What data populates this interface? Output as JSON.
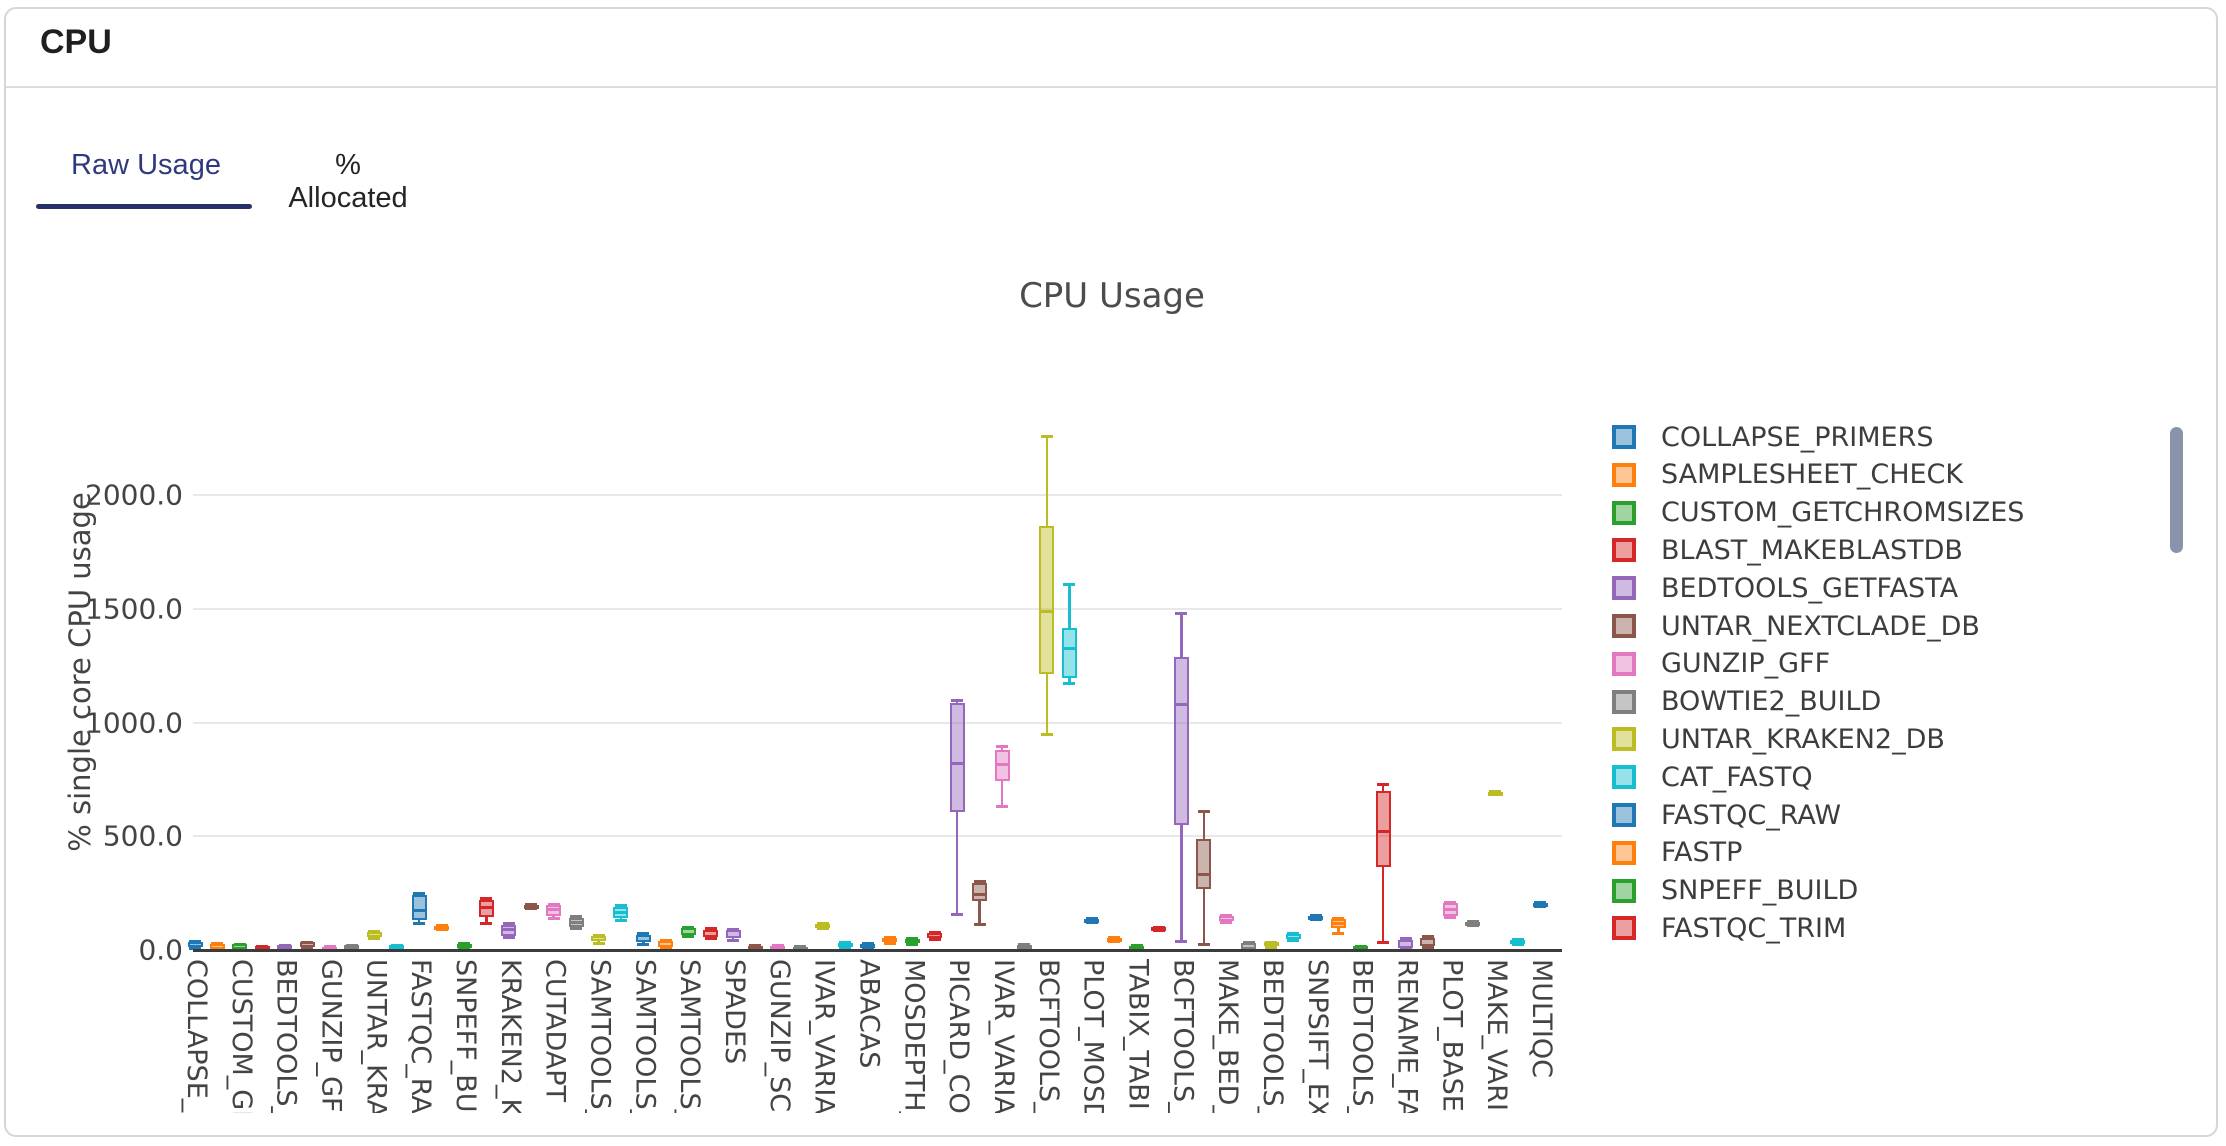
{
  "card": {
    "title": "CPU"
  },
  "tabs": [
    {
      "label": "Raw Usage",
      "active": true
    },
    {
      "label": "% Allocated",
      "active": false
    }
  ],
  "chart_data": {
    "type": "box",
    "title": "CPU Usage",
    "xlabel": "",
    "ylabel": "% single core CPU usage",
    "ylim": [
      0,
      2320
    ],
    "grid": true,
    "legend_position": "right",
    "yticks": [
      {
        "label": "0.0",
        "value": 0
      },
      {
        "label": "500.0",
        "value": 500
      },
      {
        "label": "1000.0",
        "value": 1000
      },
      {
        "label": "1500.0",
        "value": 1500
      },
      {
        "label": "2000.0",
        "value": 2000
      }
    ],
    "palette": [
      "#1f77b4",
      "#ff7f0e",
      "#2ca02c",
      "#d62728",
      "#9467bd",
      "#8c564b",
      "#e377c2",
      "#7f7f7f",
      "#bcbd22",
      "#17becf"
    ],
    "legend": [
      {
        "name": "COLLAPSE_PRIMERS",
        "color": "#1f77b4"
      },
      {
        "name": "SAMPLESHEET_CHECK",
        "color": "#ff7f0e"
      },
      {
        "name": "CUSTOM_GETCHROMSIZES",
        "color": "#2ca02c"
      },
      {
        "name": "BLAST_MAKEBLASTDB",
        "color": "#d62728"
      },
      {
        "name": "BEDTOOLS_GETFASTA",
        "color": "#9467bd"
      },
      {
        "name": "UNTAR_NEXTCLADE_DB",
        "color": "#8c564b"
      },
      {
        "name": "GUNZIP_GFF",
        "color": "#e377c2"
      },
      {
        "name": "BOWTIE2_BUILD",
        "color": "#7f7f7f"
      },
      {
        "name": "UNTAR_KRAKEN2_DB",
        "color": "#bcbd22"
      },
      {
        "name": "CAT_FASTQ",
        "color": "#17becf"
      },
      {
        "name": "FASTQC_RAW",
        "color": "#1f77b4"
      },
      {
        "name": "FASTP",
        "color": "#ff7f0e"
      },
      {
        "name": "SNPEFF_BUILD",
        "color": "#2ca02c"
      },
      {
        "name": "FASTQC_TRIM",
        "color": "#d62728"
      }
    ],
    "boxes": [
      {
        "tick": "COLLAPSE_P",
        "stats": [
          10,
          15,
          25,
          35,
          40
        ]
      },
      {
        "tick": "",
        "stats": [
          2,
          5,
          15,
          28,
          32
        ]
      },
      {
        "tick": "CUSTOM_GE",
        "stats": [
          3,
          6,
          14,
          25,
          28
        ]
      },
      {
        "tick": "",
        "stats": [
          0,
          2,
          8,
          16,
          18
        ]
      },
      {
        "tick": "BEDTOOLS_",
        "stats": [
          2,
          5,
          12,
          20,
          23
        ]
      },
      {
        "tick": "",
        "stats": [
          12,
          15,
          24,
          33,
          36
        ]
      },
      {
        "tick": "GUNZIP_GF",
        "stats": [
          0,
          2,
          8,
          15,
          17
        ]
      },
      {
        "tick": "",
        "stats": [
          6,
          9,
          15,
          21,
          24
        ]
      },
      {
        "tick": "UNTAR_KRA",
        "stats": [
          52,
          57,
          67,
          78,
          83
        ]
      },
      {
        "tick": "",
        "stats": [
          0,
          4,
          12,
          20,
          24
        ]
      },
      {
        "tick": "FASTQC_RA",
        "stats": [
          120,
          132,
          172,
          243,
          252
        ]
      },
      {
        "tick": "",
        "stats": [
          92,
          96,
          100,
          104,
          108
        ]
      },
      {
        "tick": "SNPEFF_BU",
        "stats": [
          4,
          8,
          16,
          27,
          30
        ]
      },
      {
        "tick": "",
        "stats": [
          118,
          144,
          188,
          218,
          228
        ]
      },
      {
        "tick": "KRAKEN2_K",
        "stats": [
          55,
          62,
          88,
          112,
          118
        ]
      },
      {
        "tick": "",
        "stats": [
          186,
          190,
          195,
          200,
          204
        ]
      },
      {
        "tick": "CUTADAPT",
        "stats": [
          142,
          150,
          178,
          196,
          204
        ]
      },
      {
        "tick": "",
        "stats": [
          95,
          102,
          122,
          142,
          150
        ]
      },
      {
        "tick": "SAMTOOLS_",
        "stats": [
          32,
          38,
          50,
          62,
          68
        ]
      },
      {
        "tick": "",
        "stats": [
          132,
          140,
          165,
          190,
          198
        ]
      },
      {
        "tick": "SAMTOOLS_",
        "stats": [
          28,
          34,
          50,
          68,
          74
        ]
      },
      {
        "tick": "",
        "stats": [
          8,
          12,
          25,
          40,
          46
        ]
      },
      {
        "tick": "SAMTOOLS_",
        "stats": [
          60,
          66,
          80,
          96,
          102
        ]
      },
      {
        "tick": "",
        "stats": [
          52,
          58,
          72,
          90,
          96
        ]
      },
      {
        "tick": "SPADES",
        "stats": [
          46,
          52,
          68,
          86,
          92
        ]
      },
      {
        "tick": "",
        "stats": [
          0,
          3,
          10,
          18,
          21
        ]
      },
      {
        "tick": "GUNZIP_SC",
        "stats": [
          0,
          3,
          10,
          18,
          21
        ]
      },
      {
        "tick": "",
        "stats": [
          0,
          3,
          8,
          14,
          16
        ]
      },
      {
        "tick": "IVAR_VARIA",
        "stats": [
          98,
          102,
          108,
          114,
          118
        ]
      },
      {
        "tick": "",
        "stats": [
          12,
          16,
          24,
          32,
          36
        ]
      },
      {
        "tick": "ABACAS",
        "stats": [
          4,
          8,
          18,
          28,
          32
        ]
      },
      {
        "tick": "",
        "stats": [
          32,
          36,
          44,
          52,
          56
        ]
      },
      {
        "tick": "MOSDEPTH_",
        "stats": [
          28,
          32,
          40,
          48,
          52
        ]
      },
      {
        "tick": "",
        "stats": [
          48,
          52,
          62,
          74,
          78
        ]
      },
      {
        "tick": "PICARD_CO",
        "stats": [
          160,
          605,
          820,
          1085,
          1100
        ]
      },
      {
        "tick": "",
        "stats": [
          115,
          215,
          246,
          294,
          303
        ]
      },
      {
        "tick": "IVAR_VARIA",
        "stats": [
          632,
          741,
          816,
          877,
          895
        ]
      },
      {
        "tick": "",
        "stats": [
          4,
          8,
          15,
          24,
          28
        ]
      },
      {
        "tick": "BCFTOOLS_",
        "stats": [
          950,
          1215,
          1490,
          1865,
          2260
        ]
      },
      {
        "tick": "",
        "stats": [
          1175,
          1195,
          1325,
          1415,
          1610
        ]
      },
      {
        "tick": "PLOT_MOSD",
        "stats": [
          125,
          128,
          133,
          138,
          142
        ]
      },
      {
        "tick": "",
        "stats": [
          38,
          42,
          48,
          54,
          58
        ]
      },
      {
        "tick": "TABIX_TABI",
        "stats": [
          4,
          7,
          12,
          18,
          21
        ]
      },
      {
        "tick": "",
        "stats": [
          88,
          91,
          95,
          99,
          102
        ]
      },
      {
        "tick": "BCFTOOLS_",
        "stats": [
          40,
          550,
          1080,
          1290,
          1480
        ]
      },
      {
        "tick": "",
        "stats": [
          26,
          268,
          330,
          487,
          610
        ]
      },
      {
        "tick": "MAKE_BED_",
        "stats": [
          122,
          128,
          138,
          148,
          153
        ]
      },
      {
        "tick": "",
        "stats": [
          2,
          6,
          16,
          30,
          35
        ]
      },
      {
        "tick": "BEDTOOLS_",
        "stats": [
          13,
          17,
          25,
          33,
          37
        ]
      },
      {
        "tick": "",
        "stats": [
          42,
          47,
          58,
          70,
          76
        ]
      },
      {
        "tick": "SNPSIFT_EX",
        "stats": [
          138,
          141,
          146,
          151,
          154
        ]
      },
      {
        "tick": "",
        "stats": [
          76,
          95,
          118,
          138,
          142
        ]
      },
      {
        "tick": "BEDTOOLS_",
        "stats": [
          0,
          3,
          9,
          16,
          19
        ]
      },
      {
        "tick": "",
        "stats": [
          35,
          364,
          522,
          700,
          728
        ]
      },
      {
        "tick": "RENAME_FA",
        "stats": [
          4,
          9,
          25,
          45,
          52
        ]
      },
      {
        "tick": "",
        "stats": [
          13,
          18,
          35,
          54,
          60
        ]
      },
      {
        "tick": "PLOT_BASE",
        "stats": [
          145,
          150,
          178,
          206,
          212
        ]
      },
      {
        "tick": "",
        "stats": [
          112,
          115,
          119,
          123,
          126
        ]
      },
      {
        "tick": "MAKE_VARI",
        "stats": [
          685,
          688,
          692,
          696,
          700
        ]
      },
      {
        "tick": "",
        "stats": [
          28,
          32,
          38,
          45,
          49
        ]
      },
      {
        "tick": "MULTIQC",
        "stats": [
          192,
          196,
          201,
          206,
          210
        ]
      }
    ]
  }
}
